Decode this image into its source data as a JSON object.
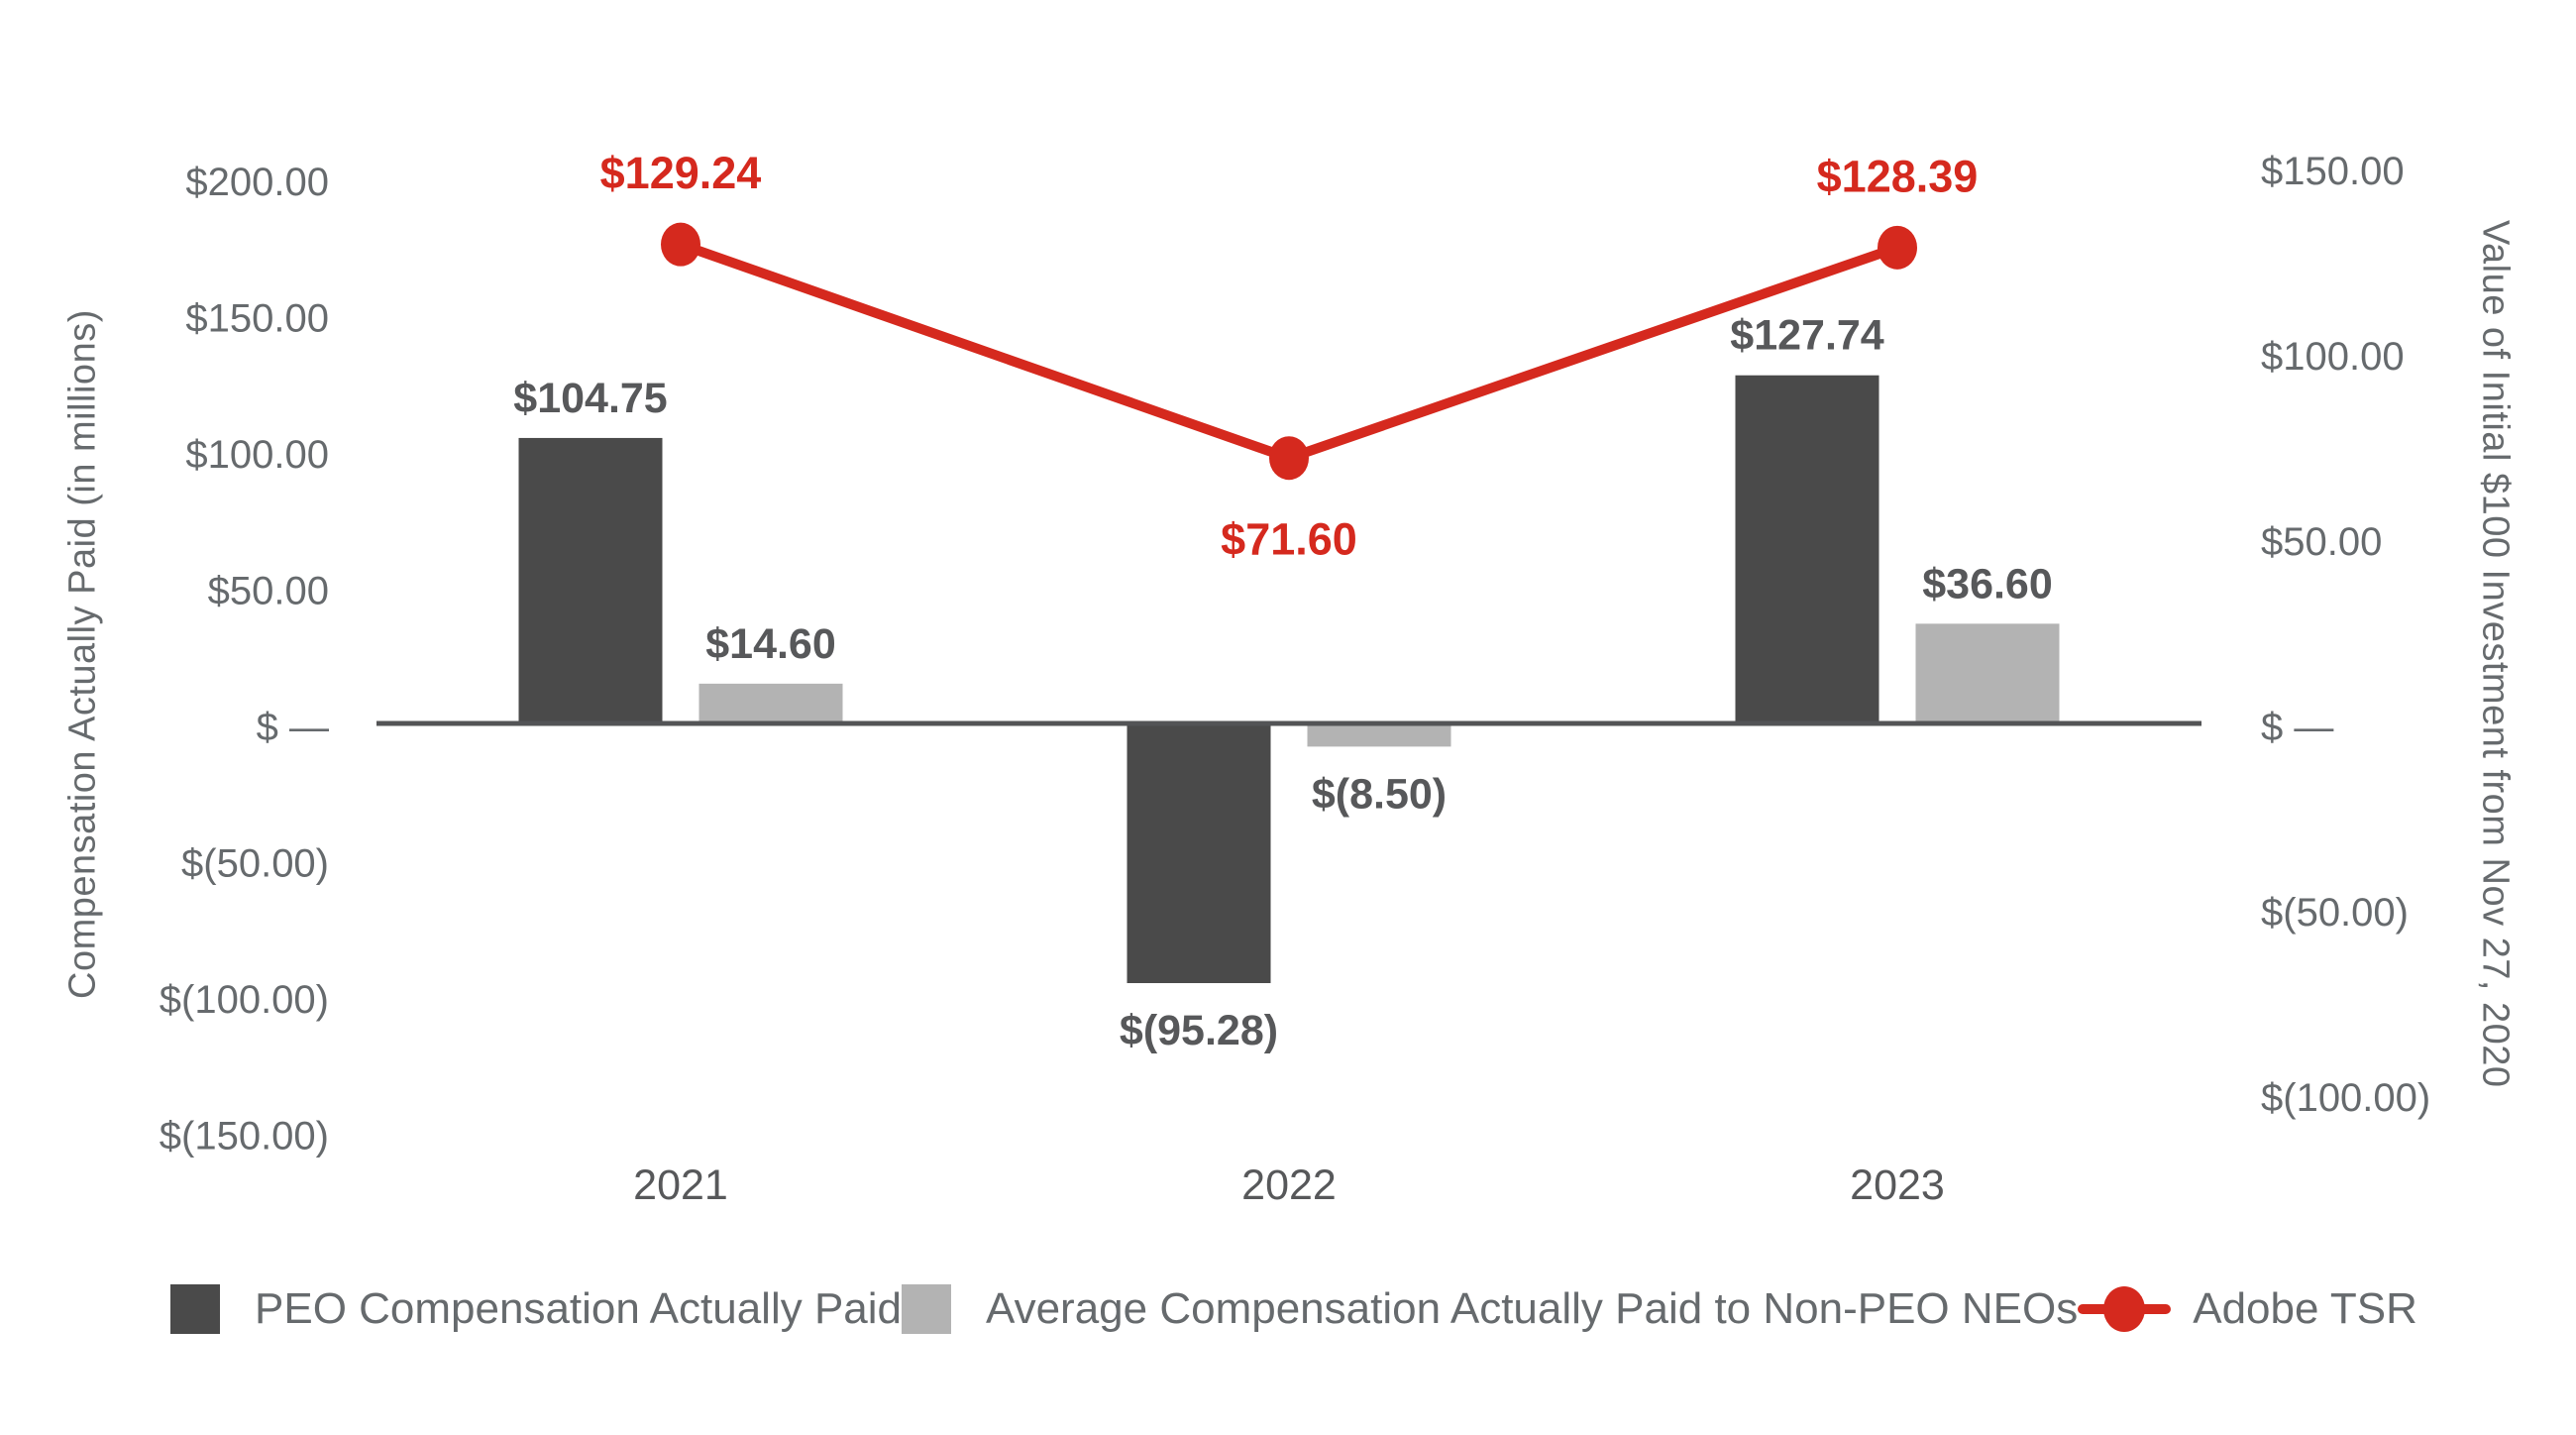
{
  "colors": {
    "peo_bar": "#4a4a4a",
    "neo_bar": "#b3b3b3",
    "tsr_red": "#d5291e",
    "axis_line": "#535456",
    "tick_text": "#666a6d",
    "bar_label_text": "#57585a"
  },
  "left_axis": {
    "title": "Compensation Actually Paid (in millions)",
    "ticks": [
      {
        "label": "$200.00",
        "value": 200
      },
      {
        "label": "$150.00",
        "value": 150
      },
      {
        "label": "$100.00",
        "value": 100
      },
      {
        "label": "$50.00",
        "value": 50
      },
      {
        "label": "$ —",
        "value": 0
      },
      {
        "label": "$(50.00)",
        "value": -50
      },
      {
        "label": "$(100.00)",
        "value": -100
      },
      {
        "label": "$(150.00)",
        "value": -150
      }
    ]
  },
  "right_axis": {
    "title": "Value of Initial $100 Investment from Nov 27, 2020",
    "ticks": [
      {
        "label": "$150.00",
        "value": 150
      },
      {
        "label": "$100.00",
        "value": 100
      },
      {
        "label": "$50.00",
        "value": 50
      },
      {
        "label": "$ —",
        "value": 0
      },
      {
        "label": "$(50.00)",
        "value": -50
      },
      {
        "label": "$(100.00)",
        "value": -100
      }
    ]
  },
  "chart_data": {
    "type": "bar+line",
    "categories": [
      "2021",
      "2022",
      "2023"
    ],
    "series": [
      {
        "name": "PEO Compensation Actually Paid",
        "type": "bar",
        "axis": "left",
        "color": "#4a4a4a",
        "values": [
          104.75,
          -95.28,
          127.74
        ],
        "labels": [
          "$104.75",
          "$(95.28)",
          "$127.74"
        ]
      },
      {
        "name": "Average Compensation Actually Paid to Non-PEO NEOs",
        "type": "bar",
        "axis": "left",
        "color": "#b3b3b3",
        "values": [
          14.6,
          -8.5,
          36.6
        ],
        "labels": [
          "$14.60",
          "$(8.50)",
          "$36.60"
        ]
      },
      {
        "name": "Adobe TSR",
        "type": "line",
        "axis": "right",
        "color": "#d5291e",
        "values": [
          129.24,
          71.6,
          128.39
        ],
        "labels": [
          "$129.24",
          "$71.60",
          "$128.39"
        ]
      }
    ],
    "title": "",
    "xlabel": "",
    "ylabel_left": "Compensation Actually Paid (in millions)",
    "ylabel_right": "Value of Initial $100 Investment from Nov 27, 2020",
    "left_axis_range": [
      -150,
      200
    ],
    "right_axis_range": [
      -100,
      150
    ],
    "grid": false,
    "legend_position": "bottom"
  },
  "legend": {
    "items": [
      {
        "label": "PEO Compensation Actually Paid",
        "marker": "square",
        "color": "#4a4a4a"
      },
      {
        "label": "Average Compensation Actually Paid to Non-PEO NEOs",
        "marker": "square",
        "color": "#b3b3b3"
      },
      {
        "label": "Adobe TSR",
        "marker": "line-dot",
        "color": "#d5291e"
      }
    ]
  }
}
